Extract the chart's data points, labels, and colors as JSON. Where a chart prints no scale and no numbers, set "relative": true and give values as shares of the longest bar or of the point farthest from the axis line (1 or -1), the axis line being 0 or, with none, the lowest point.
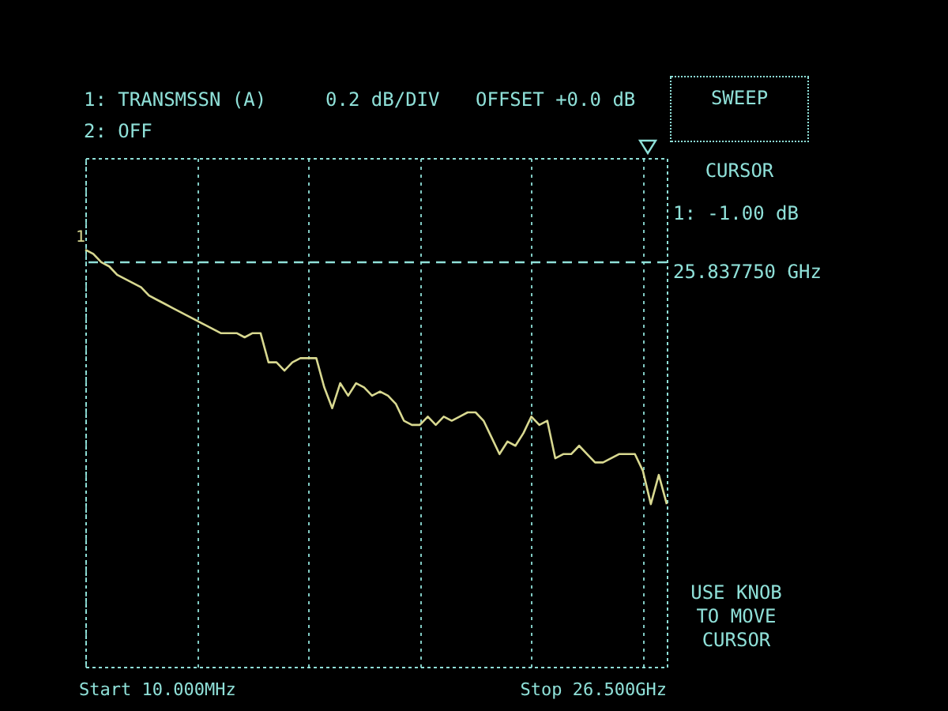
{
  "chart_data": {
    "type": "line",
    "title": "1: TRANSMSSN (A)",
    "subtitle": "2: OFF",
    "relative": true,
    "categories": [
      null,
      null,
      null,
      null,
      null,
      null,
      null,
      null,
      null,
      null,
      null,
      null,
      null,
      null,
      null,
      null,
      null,
      null,
      null,
      null,
      null,
      null,
      null,
      null,
      null,
      null,
      null,
      null,
      null,
      null,
      null,
      null,
      null,
      null,
      null,
      null,
      null,
      null,
      null,
      null,
      null,
      null,
      null,
      null,
      null,
      null,
      null,
      null,
      null,
      null,
      null,
      null,
      null,
      null,
      null,
      null,
      null,
      null,
      null,
      null,
      null,
      null,
      null,
      null,
      null,
      null,
      null,
      null,
      null,
      null,
      null,
      null,
      null,
      null
    ],
    "grid": "x",
    "marker": "none",
    "line_style": "solid",
    "series": [
      {
        "color": "#d8d890",
        "values": [
          1,
          0.99,
          0.97,
          0.96,
          0.94,
          0.93,
          0.92,
          0.91,
          0.89,
          0.88,
          0.87,
          0.86,
          0.85,
          0.84,
          0.83,
          0.82,
          0.81,
          0.8,
          0.8,
          0.8,
          0.79,
          0.8,
          0.8,
          0.73,
          0.73,
          0.71,
          0.73,
          0.74,
          0.74,
          0.74,
          0.67,
          0.62,
          0.68,
          0.65,
          0.68,
          0.67,
          0.65,
          0.66,
          0.65,
          0.63,
          0.59,
          0.58,
          0.58,
          0.6,
          0.58,
          0.6,
          0.59,
          0.6,
          0.61,
          0.61,
          0.59,
          0.55,
          0.51,
          0.54,
          0.53,
          0.56,
          0.6,
          0.58,
          0.59,
          0.5,
          0.51,
          0.51,
          0.53,
          0.51,
          0.49,
          0.49,
          0.5,
          0.51,
          0.51,
          0.51,
          0.47,
          0.39,
          0.46,
          0.39
        ]
      }
    ],
    "ref_lines": [
      {
        "axis": "y",
        "value": 0.97,
        "label": null,
        "color": "#8fe0d8",
        "line_style": "dashed"
      }
    ],
    "annotations": [
      "0.2 dB/DIV",
      "OFFSET +0.0 dB",
      "SWEEP",
      "CURSOR",
      "1: -1.00 dB",
      "USE KNOB TO MOVE CURSOR",
      "Start 10.000MHz",
      "Stop 26.500GHz",
      "25.837750 GHz",
      "1"
    ]
  }
}
